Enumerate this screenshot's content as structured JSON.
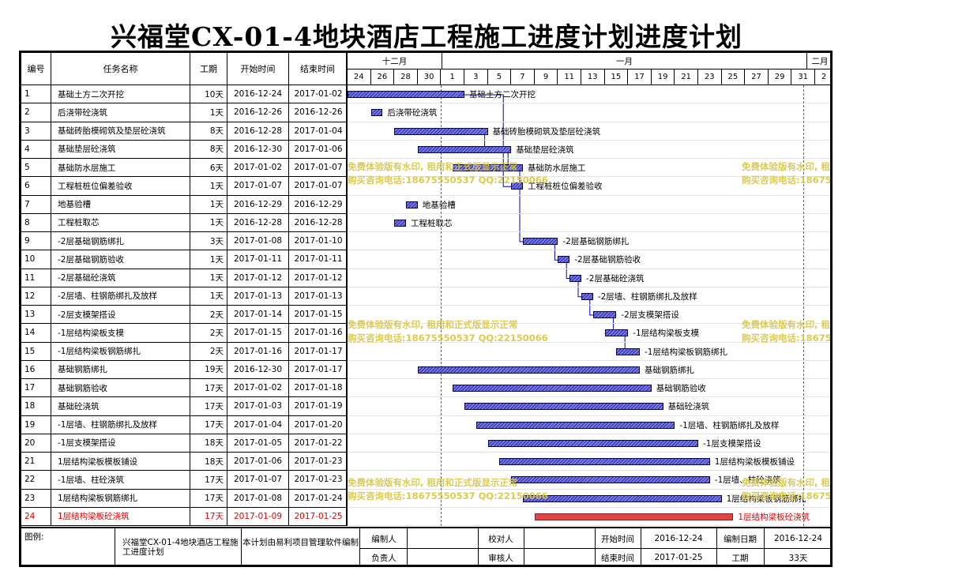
{
  "title": "兴福堂CX-01-4地块酒店工程施工进度计划进度计划",
  "columns": {
    "id": "编号",
    "name": "任务名称",
    "duration": "工期",
    "start": "开始时间",
    "end": "结束时间"
  },
  "months": [
    "十二月",
    "一月",
    "二月"
  ],
  "days": [
    "24",
    "26",
    "28",
    "30",
    "1",
    "3",
    "5",
    "7",
    "9",
    "11",
    "13",
    "15",
    "17",
    "19",
    "21",
    "23",
    "25",
    "27",
    "29",
    "31",
    "2"
  ],
  "tasks": [
    {
      "id": "1",
      "name": "基础土方二次开挖",
      "duration": "10天",
      "start": "2016-12-24",
      "end": "2017-01-02"
    },
    {
      "id": "2",
      "name": "后浇带砼浇筑",
      "duration": "1天",
      "start": "2016-12-26",
      "end": "2016-12-26"
    },
    {
      "id": "3",
      "name": "基础砖胎模砌筑及垫层砼浇筑",
      "duration": "8天",
      "start": "2016-12-28",
      "end": "2017-01-04"
    },
    {
      "id": "4",
      "name": "基础垫层砼浇筑",
      "duration": "8天",
      "start": "2016-12-30",
      "end": "2017-01-06"
    },
    {
      "id": "5",
      "name": "基础防水层施工",
      "duration": "6天",
      "start": "2017-01-02",
      "end": "2017-01-07"
    },
    {
      "id": "6",
      "name": "工程桩桩位偏差验收",
      "duration": "1天",
      "start": "2017-01-07",
      "end": "2017-01-07"
    },
    {
      "id": "7",
      "name": "地基验槽",
      "duration": "1天",
      "start": "2016-12-29",
      "end": "2016-12-29"
    },
    {
      "id": "8",
      "name": "工程桩取芯",
      "duration": "1天",
      "start": "2016-12-28",
      "end": "2016-12-28"
    },
    {
      "id": "9",
      "name": "-2层基础钢筋绑扎",
      "duration": "3天",
      "start": "2017-01-08",
      "end": "2017-01-10"
    },
    {
      "id": "10",
      "name": "-2层基础钢筋验收",
      "duration": "1天",
      "start": "2017-01-11",
      "end": "2017-01-11"
    },
    {
      "id": "11",
      "name": "-2层基础砼浇筑",
      "duration": "1天",
      "start": "2017-01-12",
      "end": "2017-01-12"
    },
    {
      "id": "12",
      "name": "-2层墙、柱钢筋绑扎及放样",
      "duration": "1天",
      "start": "2017-01-13",
      "end": "2017-01-13"
    },
    {
      "id": "13",
      "name": "-2层支模架搭设",
      "duration": "2天",
      "start": "2017-01-14",
      "end": "2017-01-15"
    },
    {
      "id": "14",
      "name": "-1层结构梁板支模",
      "duration": "2天",
      "start": "2017-01-15",
      "end": "2017-01-16"
    },
    {
      "id": "15",
      "name": "-1层结构梁板钢筋绑扎",
      "duration": "2天",
      "start": "2017-01-16",
      "end": "2017-01-17"
    },
    {
      "id": "16",
      "name": "基础钢筋绑扎",
      "duration": "19天",
      "start": "2016-12-30",
      "end": "2017-01-17"
    },
    {
      "id": "17",
      "name": "基础钢筋验收",
      "duration": "17天",
      "start": "2017-01-02",
      "end": "2017-01-18"
    },
    {
      "id": "18",
      "name": "基础砼浇筑",
      "duration": "17天",
      "start": "2017-01-03",
      "end": "2017-01-19"
    },
    {
      "id": "19",
      "name": "-1层墙、柱钢筋绑扎及放样",
      "duration": "17天",
      "start": "2017-01-04",
      "end": "2017-01-20"
    },
    {
      "id": "20",
      "name": "-1层支模架搭设",
      "duration": "18天",
      "start": "2017-01-05",
      "end": "2017-01-22"
    },
    {
      "id": "21",
      "name": "1层结构梁板模板铺设",
      "duration": "18天",
      "start": "2017-01-06",
      "end": "2017-01-23"
    },
    {
      "id": "22",
      "name": "-1层墙、柱砼浇筑",
      "duration": "17天",
      "start": "2017-01-07",
      "end": "2017-01-23"
    },
    {
      "id": "23",
      "name": "1层结构梁板钢筋绑扎",
      "duration": "17天",
      "start": "2017-01-08",
      "end": "2017-01-24"
    },
    {
      "id": "24",
      "name": "1层结构梁板砼浇筑",
      "duration": "17天",
      "start": "2017-01-09",
      "end": "2017-01-25",
      "critical": true
    }
  ],
  "gantt": {
    "day_zero": "2016-12-24",
    "bars": [
      {
        "row": 1,
        "start": 0,
        "end": 10,
        "label": "基础土方二次开挖"
      },
      {
        "row": 2,
        "start": 2,
        "end": 3,
        "label": "后浇带砼浇筑"
      },
      {
        "row": 3,
        "start": 4,
        "end": 12,
        "label": "基础砖胎模砌筑及垫层砼浇筑"
      },
      {
        "row": 4,
        "start": 6,
        "end": 14,
        "label": "基础垫层砼浇筑"
      },
      {
        "row": 5,
        "start": 9,
        "end": 15,
        "label": "基础防水层施工"
      },
      {
        "row": 6,
        "start": 14,
        "end": 15,
        "label": "工程桩桩位偏差验收"
      },
      {
        "row": 7,
        "start": 5,
        "end": 6,
        "label": "地基验槽"
      },
      {
        "row": 8,
        "start": 4,
        "end": 5,
        "label": "工程桩取芯"
      },
      {
        "row": 9,
        "start": 15,
        "end": 18,
        "label": "-2层基础钢筋绑扎"
      },
      {
        "row": 10,
        "start": 18,
        "end": 19,
        "label": "-2层基础钢筋验收"
      },
      {
        "row": 11,
        "start": 19,
        "end": 20,
        "label": "-2层基础砼浇筑"
      },
      {
        "row": 12,
        "start": 20,
        "end": 21,
        "label": "-2层墙、柱钢筋绑扎及放样"
      },
      {
        "row": 13,
        "start": 21,
        "end": 23,
        "label": "-2层支模架搭设"
      },
      {
        "row": 14,
        "start": 22,
        "end": 24,
        "label": "-1层结构梁板支模"
      },
      {
        "row": 15,
        "start": 23,
        "end": 25,
        "label": "-1层结构梁板钢筋绑扎"
      },
      {
        "row": 16,
        "start": 6,
        "end": 25,
        "label": "基础钢筋绑扎"
      },
      {
        "row": 17,
        "start": 9,
        "end": 26,
        "label": "基础钢筋验收"
      },
      {
        "row": 18,
        "start": 10,
        "end": 27,
        "label": "基础砼浇筑"
      },
      {
        "row": 19,
        "start": 11,
        "end": 28,
        "label": "-1层墙、柱钢筋绑扎及放样"
      },
      {
        "row": 20,
        "start": 12,
        "end": 30,
        "label": "-1层支模架搭设"
      },
      {
        "row": 21,
        "start": 13,
        "end": 31,
        "label": "1层结构梁板模板铺设"
      },
      {
        "row": 22,
        "start": 14,
        "end": 31,
        "label": "-1层墙、柱砼浇筑"
      },
      {
        "row": 23,
        "start": 15,
        "end": 32,
        "label": "1层结构梁板钢筋绑扎"
      },
      {
        "row": 24,
        "start": 16,
        "end": 33,
        "label": "1层结构梁板砼浇筑",
        "critical": true
      }
    ]
  },
  "watermark": {
    "line1": "免费体验版有水印, 租用和正式版显示正常",
    "line2": "购买咨询电话:18675550537 QQ:22150066"
  },
  "footer": {
    "legend_label": "图例:",
    "project_name": "兴福堂CX-01-4地块酒店工程施工进度计划",
    "software": "本计划由易利项目管理软件编制",
    "editor_label": "编制人",
    "checker_label": "校对人",
    "start_label": "开始时间",
    "start_value": "2016-12-24",
    "date_label": "编制日期",
    "date_value": "2016-12-24",
    "manager_label": "负责人",
    "reviewer_label": "审核人",
    "end_label": "结束时间",
    "end_value": "2017-01-25",
    "duration_label": "工期",
    "duration_value": "33天"
  },
  "colors": {
    "bar": "#2a2aa8",
    "critical": "#e04646",
    "link": "#0000c0",
    "watermark": "#d8c640"
  }
}
